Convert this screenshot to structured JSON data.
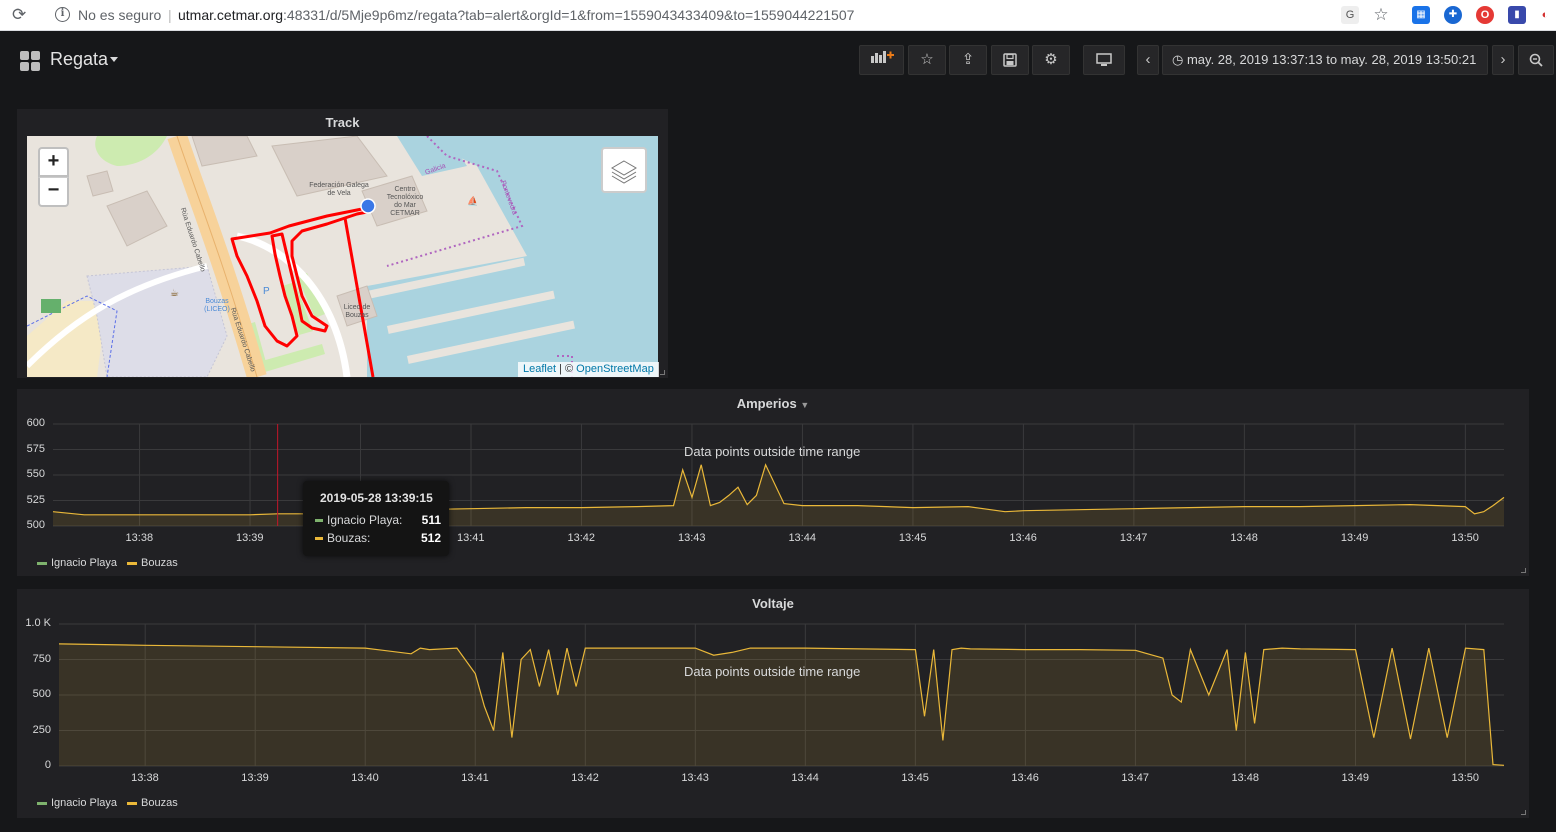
{
  "browser": {
    "security": "No es seguro",
    "separator": "|",
    "url_host": "utmar.cetmar.org",
    "url_rest": ":48331/d/5Mje9p6mz/regata?tab=alert&orgId=1&from=1559043433409&to=1559044221507"
  },
  "dashboard": {
    "title": "Regata",
    "time_range": "may. 28, 2019 13:37:13 to may. 28, 2019 13:50:21"
  },
  "panels": {
    "track": {
      "title": "Track",
      "map_labels": {
        "federacion": "Federación Galega de Vela",
        "centro": "Centro Tecnolóxico do Mar CETMAR",
        "street1": "Rúa Eduardo Cabello",
        "street2": "Rúa Eduardo Cabello",
        "bouzas": "Bouzas (LICEO)",
        "liceo": "Liceo de Bouzas",
        "galicia": "Galicia",
        "pontevedra": "Pontevedra",
        "parking": "P"
      },
      "zoom_in": "+",
      "zoom_out": "−",
      "attribution_leaflet": "Leaflet",
      "attribution_sep": " | © ",
      "attribution_osm": "OpenStreetMap"
    },
    "amperios": {
      "title": "Amperios",
      "notice": "Data points outside time range",
      "tooltip": {
        "time": "2019-05-28 13:39:15",
        "rows": [
          {
            "name": "Ignacio Playa:",
            "value": "511"
          },
          {
            "name": "Bouzas:",
            "value": "512"
          }
        ]
      }
    },
    "voltaje": {
      "title": "Voltaje",
      "notice": "Data points outside time range"
    }
  },
  "chart_data": [
    {
      "type": "line",
      "title": "Amperios",
      "x_ticks": [
        "13:38",
        "13:39",
        "13:40",
        "13:41",
        "13:42",
        "13:43",
        "13:44",
        "13:45",
        "13:46",
        "13:47",
        "13:48",
        "13:49",
        "13:50"
      ],
      "y_ticks": [
        "600",
        "575",
        "550",
        "525",
        "500"
      ],
      "ylim": [
        500,
        600
      ],
      "xlim": [
        "13:37:13",
        "13:50:21"
      ],
      "grid": true,
      "legend_position": "bottom-left",
      "series": [
        {
          "name": "Ignacio Playa",
          "color": "#7eb26d",
          "x": [],
          "y": []
        },
        {
          "name": "Bouzas",
          "color": "#eab839",
          "x": [
            "13:37:13",
            "13:37:30",
            "13:38:00",
            "13:38:30",
            "13:39:00",
            "13:39:15",
            "13:39:40",
            "13:40:00",
            "13:40:30",
            "13:41:00",
            "13:41:30",
            "13:42:00",
            "13:42:30",
            "13:42:50",
            "13:42:55",
            "13:43:00",
            "13:43:05",
            "13:43:10",
            "13:43:15",
            "13:43:20",
            "13:43:25",
            "13:43:30",
            "13:43:35",
            "13:43:40",
            "13:43:50",
            "13:44:00",
            "13:44:30",
            "13:45:00",
            "13:45:30",
            "13:45:50",
            "13:46:00",
            "13:46:30",
            "13:47:00",
            "13:47:30",
            "13:48:00",
            "13:48:30",
            "13:49:00",
            "13:49:30",
            "13:50:00",
            "13:50:05",
            "13:50:10",
            "13:50:15",
            "13:50:21"
          ],
          "y": [
            514,
            511,
            511,
            511,
            511,
            512,
            512,
            514,
            516,
            517,
            518,
            518,
            519,
            520,
            555,
            528,
            560,
            520,
            523,
            530,
            538,
            521,
            530,
            560,
            522,
            520,
            520,
            518,
            519,
            514,
            515,
            516,
            517,
            518,
            519,
            519,
            520,
            521,
            519,
            512,
            514,
            520,
            528
          ]
        }
      ]
    },
    {
      "type": "line",
      "title": "Voltaje",
      "x_ticks": [
        "13:38",
        "13:39",
        "13:40",
        "13:41",
        "13:42",
        "13:43",
        "13:44",
        "13:45",
        "13:46",
        "13:47",
        "13:48",
        "13:49",
        "13:50"
      ],
      "y_ticks": [
        "1.0 K",
        "750",
        "500",
        "250",
        "0"
      ],
      "ylim": [
        0,
        1000
      ],
      "xlim": [
        "13:37:13",
        "13:50:21"
      ],
      "grid": true,
      "legend_position": "bottom-left",
      "series": [
        {
          "name": "Ignacio Playa",
          "color": "#7eb26d",
          "x": [],
          "y": []
        },
        {
          "name": "Bouzas",
          "color": "#eab839",
          "x": [
            "13:37:13",
            "13:38:00",
            "13:39:00",
            "13:40:00",
            "13:40:25",
            "13:40:30",
            "13:40:35",
            "13:40:50",
            "13:41:00",
            "13:41:05",
            "13:41:10",
            "13:41:15",
            "13:41:20",
            "13:41:25",
            "13:41:30",
            "13:41:35",
            "13:41:40",
            "13:41:45",
            "13:41:50",
            "13:41:55",
            "13:42:00",
            "13:42:30",
            "13:43:00",
            "13:43:10",
            "13:43:20",
            "13:43:30",
            "13:44:00",
            "13:44:30",
            "13:45:00",
            "13:45:05",
            "13:45:10",
            "13:45:15",
            "13:45:20",
            "13:45:25",
            "13:45:30",
            "13:46:00",
            "13:46:30",
            "13:47:00",
            "13:47:15",
            "13:47:20",
            "13:47:25",
            "13:47:30",
            "13:47:40",
            "13:47:50",
            "13:47:55",
            "13:48:00",
            "13:48:05",
            "13:48:10",
            "13:48:20",
            "13:48:30",
            "13:49:00",
            "13:49:10",
            "13:49:20",
            "13:49:30",
            "13:49:40",
            "13:49:50",
            "13:50:00",
            "13:50:10",
            "13:50:15",
            "13:50:21"
          ],
          "y": [
            860,
            850,
            840,
            830,
            790,
            830,
            820,
            830,
            650,
            420,
            250,
            800,
            200,
            750,
            820,
            560,
            820,
            500,
            830,
            560,
            830,
            830,
            830,
            780,
            800,
            830,
            830,
            825,
            820,
            350,
            820,
            180,
            820,
            830,
            825,
            820,
            820,
            815,
            760,
            500,
            450,
            820,
            500,
            820,
            250,
            800,
            300,
            820,
            830,
            825,
            820,
            200,
            830,
            190,
            830,
            200,
            830,
            820,
            10,
            5
          ]
        }
      ]
    }
  ]
}
